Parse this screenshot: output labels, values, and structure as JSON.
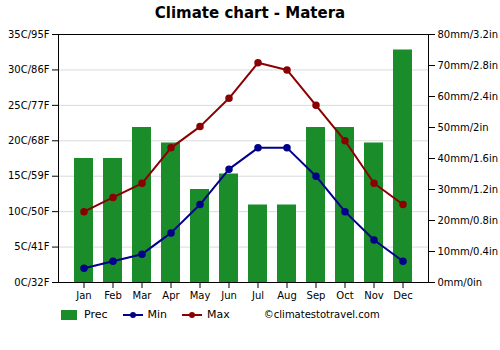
{
  "chart_data": {
    "type": "bar",
    "title": "Climate chart - Matera",
    "categories": [
      "Jan",
      "Feb",
      "Mar",
      "Apr",
      "May",
      "Jun",
      "Jul",
      "Aug",
      "Sep",
      "Oct",
      "Nov",
      "Dec"
    ],
    "series": [
      {
        "name": "Prec",
        "type": "bar",
        "axis": "y2",
        "color": "#1a8c2a",
        "values": [
          40,
          40,
          50,
          45,
          30,
          35,
          25,
          25,
          50,
          50,
          45,
          75
        ]
      },
      {
        "name": "Min",
        "type": "line",
        "marker": "circle",
        "color": "#00008b",
        "values": [
          2,
          3,
          4,
          7,
          11,
          16,
          19,
          19,
          15,
          10,
          6,
          3
        ]
      },
      {
        "name": "Max",
        "type": "line",
        "marker": "circle",
        "color": "#8b0000",
        "values": [
          10,
          12,
          14,
          19,
          22,
          26,
          31,
          30,
          25,
          20,
          14,
          11
        ]
      }
    ],
    "ylim": [
      0,
      35
    ],
    "yticks": [
      {
        "value": 0,
        "label": "0C/32F"
      },
      {
        "value": 5,
        "label": "5C/41F"
      },
      {
        "value": 10,
        "label": "10C/50F"
      },
      {
        "value": 15,
        "label": "15C/59F"
      },
      {
        "value": 20,
        "label": "20C/68F"
      },
      {
        "value": 25,
        "label": "25C/77F"
      },
      {
        "value": 30,
        "label": "30C/86F"
      },
      {
        "value": 35,
        "label": "35C/95F"
      }
    ],
    "y2lim": [
      0,
      80
    ],
    "y2ticks": [
      {
        "value": 0,
        "label": "0mm/0in"
      },
      {
        "value": 10,
        "label": "10mm/0.4in"
      },
      {
        "value": 20,
        "label": "20mm/0.8in"
      },
      {
        "value": 30,
        "label": "30mm/1.2in"
      },
      {
        "value": 40,
        "label": "40mm/1.6in"
      },
      {
        "value": 50,
        "label": "50mm/2in"
      },
      {
        "value": 60,
        "label": "60mm/2.4in"
      },
      {
        "value": 70,
        "label": "70mm/2.8in"
      },
      {
        "value": 80,
        "label": "80mm/3.2in"
      }
    ],
    "grid": true,
    "legend": "bottom",
    "annotations": [
      "©climatestotravel.com"
    ]
  }
}
